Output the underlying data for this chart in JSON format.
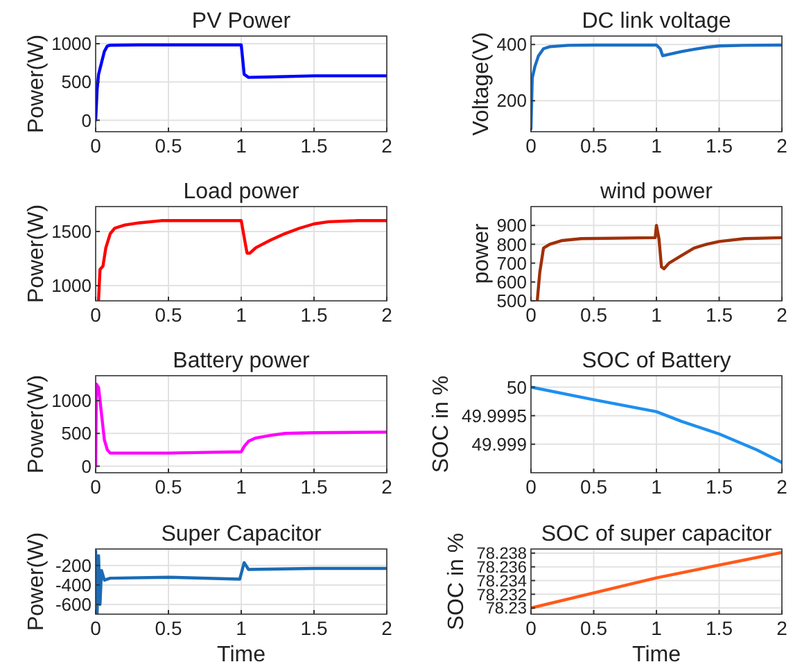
{
  "chart_data": [
    {
      "type": "line",
      "title": "PV Power",
      "ylabel": "Power(W)",
      "xlim": [
        0,
        2
      ],
      "xticks": [
        0,
        0.5,
        1,
        1.5,
        2
      ],
      "ylim": [
        -150,
        1100
      ],
      "yticks": [
        0,
        500,
        1000
      ],
      "grid": true,
      "series": [
        {
          "color": "#0000ff",
          "x": [
            0,
            0.01,
            0.02,
            0.04,
            0.06,
            0.08,
            0.1,
            0.3,
            0.5,
            0.99,
            1.0,
            1.01,
            1.02,
            1.05,
            1.2,
            1.5,
            2
          ],
          "values": [
            0,
            400,
            600,
            750,
            900,
            970,
            980,
            985,
            985,
            985,
            985,
            800,
            600,
            560,
            565,
            580,
            580
          ]
        }
      ]
    },
    {
      "type": "line",
      "title": "DC link voltage",
      "ylabel": "Voltage(V)",
      "xlim": [
        0,
        2
      ],
      "xticks": [
        0,
        0.5,
        1,
        1.5,
        2
      ],
      "ylim": [
        90,
        430
      ],
      "yticks": [
        200,
        400
      ],
      "grid": true,
      "series": [
        {
          "color": "#1a6fc4",
          "x": [
            0,
            0.01,
            0.03,
            0.06,
            0.1,
            0.15,
            0.3,
            0.5,
            1.0,
            1.03,
            1.05,
            1.1,
            1.2,
            1.3,
            1.4,
            1.5,
            1.7,
            2
          ],
          "values": [
            100,
            280,
            320,
            360,
            385,
            392,
            397,
            398,
            398,
            385,
            360,
            365,
            375,
            383,
            390,
            395,
            397,
            398
          ]
        }
      ]
    },
    {
      "type": "line",
      "title": "Load power",
      "ylabel": "Power(W)",
      "xlim": [
        0,
        2
      ],
      "xticks": [
        0,
        0.5,
        1,
        1.5,
        2
      ],
      "ylim": [
        860,
        1730
      ],
      "yticks": [
        1000,
        1500
      ],
      "grid": true,
      "series": [
        {
          "color": "#ff0000",
          "x": [
            0.02,
            0.03,
            0.05,
            0.07,
            0.1,
            0.13,
            0.2,
            0.3,
            0.45,
            1.0,
            1.02,
            1.04,
            1.06,
            1.1,
            1.2,
            1.3,
            1.4,
            1.5,
            1.6,
            1.8,
            2
          ],
          "values": [
            870,
            1150,
            1180,
            1350,
            1480,
            1530,
            1560,
            1580,
            1600,
            1600,
            1450,
            1300,
            1300,
            1350,
            1420,
            1480,
            1530,
            1570,
            1590,
            1600,
            1600
          ]
        }
      ]
    },
    {
      "type": "line",
      "title": "wind power",
      "ylabel": "power",
      "xlim": [
        0,
        2
      ],
      "xticks": [
        0,
        0.5,
        1,
        1.5,
        2
      ],
      "ylim": [
        500,
        1000
      ],
      "yticks": [
        500,
        600,
        700,
        800,
        900
      ],
      "grid": true,
      "series": [
        {
          "color": "#a0300a",
          "x": [
            0.05,
            0.07,
            0.1,
            0.15,
            0.25,
            0.4,
            0.99,
            1.0,
            1.02,
            1.04,
            1.06,
            1.1,
            1.2,
            1.3,
            1.4,
            1.5,
            1.7,
            2
          ],
          "values": [
            500,
            650,
            780,
            800,
            820,
            830,
            835,
            900,
            830,
            680,
            670,
            700,
            740,
            780,
            800,
            815,
            830,
            835
          ]
        }
      ]
    },
    {
      "type": "line",
      "title": "Battery power",
      "ylabel": "Power(W)",
      "xlim": [
        0,
        2
      ],
      "xticks": [
        0,
        0.5,
        1,
        1.5,
        2
      ],
      "ylim": [
        -100,
        1380
      ],
      "yticks": [
        0,
        500,
        1000
      ],
      "grid": true,
      "series": [
        {
          "color": "#ff00ff",
          "x": [
            0,
            0.005,
            0.02,
            0.04,
            0.06,
            0.08,
            0.1,
            0.5,
            1.0,
            1.02,
            1.05,
            1.1,
            1.2,
            1.3,
            1.5,
            2
          ],
          "values": [
            0,
            1250,
            1200,
            800,
            400,
            250,
            200,
            200,
            220,
            300,
            380,
            430,
            470,
            500,
            510,
            520
          ]
        }
      ]
    },
    {
      "type": "line",
      "title": "SOC of Battery",
      "ylabel": "SOC in %",
      "xlim": [
        0,
        2
      ],
      "xticks": [
        0,
        0.5,
        1,
        1.5,
        2
      ],
      "ylim": [
        49.9985,
        50.0002
      ],
      "yticks": [
        49.999,
        49.9995,
        50
      ],
      "grid": true,
      "series": [
        {
          "color": "#1e90ee",
          "x": [
            0,
            0.5,
            1,
            1.2,
            1.5,
            1.8,
            2
          ],
          "values": [
            50,
            49.99978,
            49.99957,
            49.9994,
            49.99918,
            49.9989,
            49.99868
          ]
        }
      ]
    },
    {
      "type": "line",
      "title": "Super Capacitor",
      "ylabel": "Power(W)",
      "xlabel": "Time",
      "xlim": [
        0,
        2
      ],
      "xticks": [
        0,
        0.5,
        1,
        1.5,
        2
      ],
      "ylim": [
        -700,
        -30
      ],
      "yticks": [
        -600,
        -400,
        -200
      ],
      "grid": true,
      "series": [
        {
          "color": "#1a6bb5",
          "x": [
            0,
            0.01,
            0.02,
            0.03,
            0.04,
            0.06,
            0.1,
            0.5,
            0.99,
            1.02,
            1.05,
            1.5,
            2
          ],
          "values": [
            -50,
            -700,
            -100,
            -600,
            -250,
            -350,
            -330,
            -320,
            -340,
            -170,
            -240,
            -230,
            -230
          ]
        }
      ]
    },
    {
      "type": "line",
      "title": "SOC of super capacitor",
      "ylabel": "SOC in %",
      "xlabel": "Time",
      "xlim": [
        0,
        2
      ],
      "xticks": [
        0,
        0.5,
        1,
        1.5,
        2
      ],
      "ylim": [
        78.2291,
        78.2386
      ],
      "yticks": [
        78.23,
        78.232,
        78.234,
        78.236,
        78.238
      ],
      "grid": true,
      "series": [
        {
          "color": "#ff5a1a",
          "x": [
            0,
            1,
            2
          ],
          "values": [
            78.23,
            78.2344,
            78.2381
          ]
        }
      ]
    }
  ]
}
